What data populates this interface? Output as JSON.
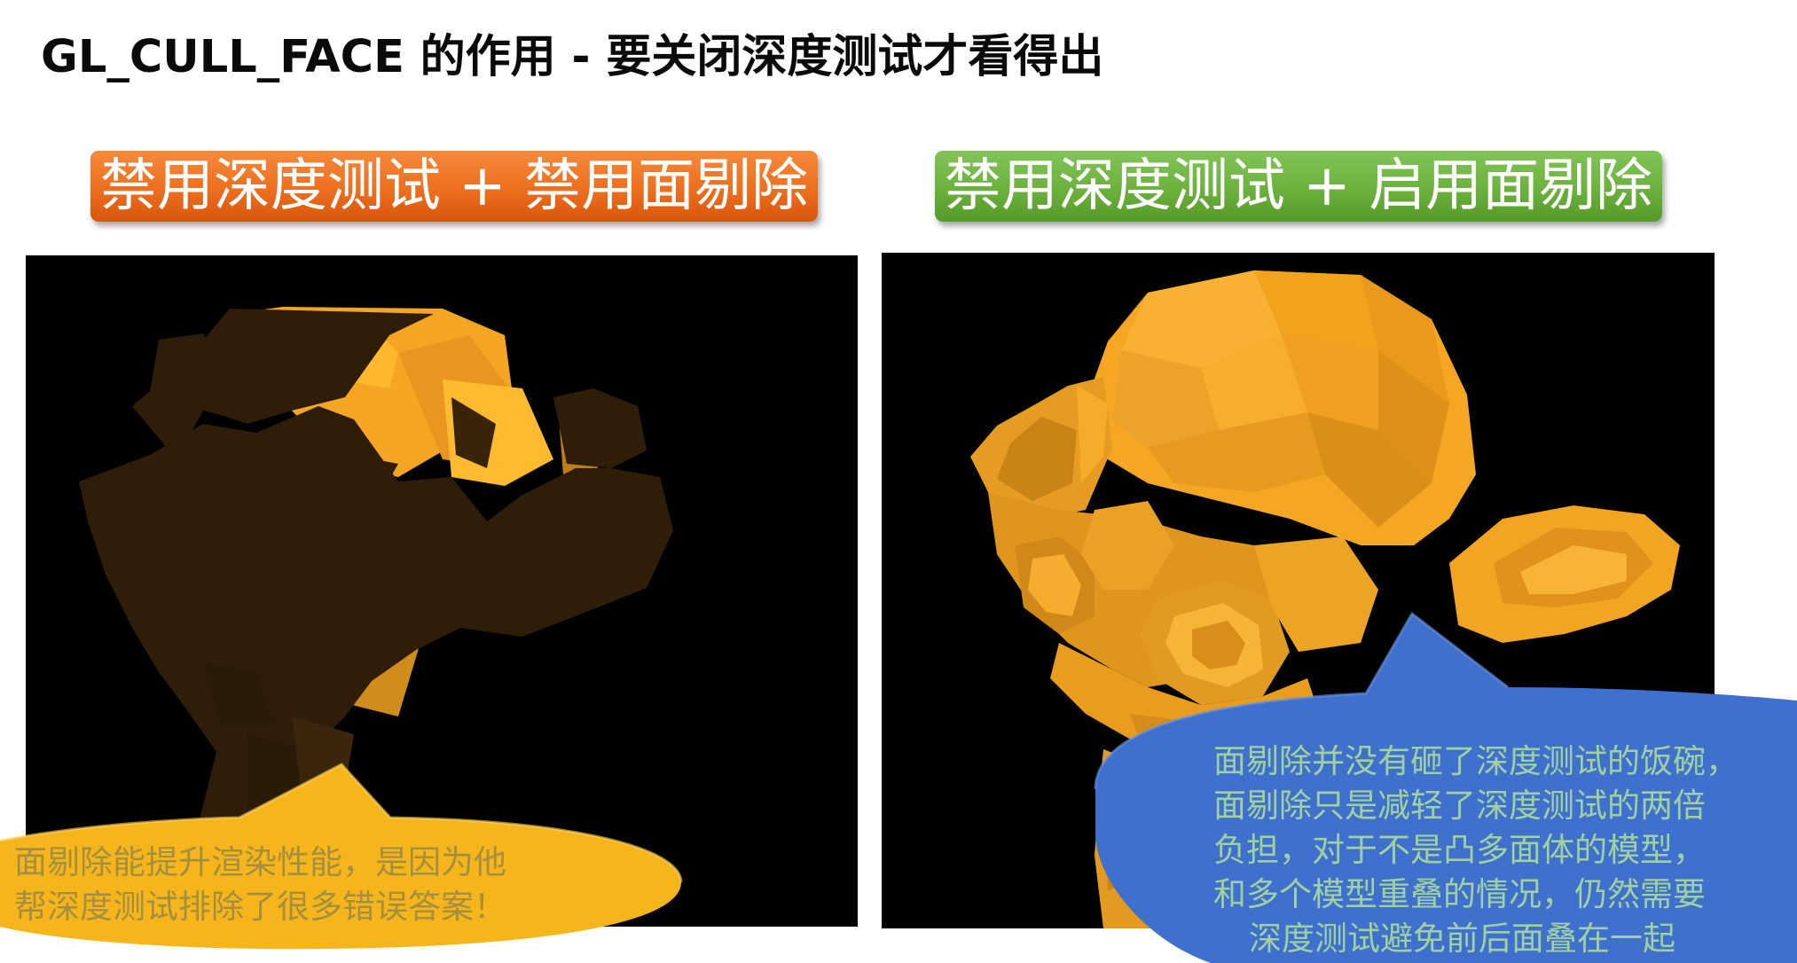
{
  "slide": {
    "title": "GL_CULL_FACE  的作用  -  要关闭深度测试才看得出"
  },
  "panels": {
    "left": {
      "banner_label": "禁用深度测试 + 禁用面剔除",
      "banner_color": "#ec6f1f"
    },
    "right": {
      "banner_label": "禁用深度测试 + 启用面剔除",
      "banner_color": "#6cb13e"
    }
  },
  "callouts": {
    "yellow": {
      "lines": [
        "面剔除能提升渲染性能，是因为他",
        "帮深度测试排除了很多错误答案！"
      ],
      "color": "#f7b61c"
    },
    "blue": {
      "lines": [
        "面剔除并没有砸了深度测试的饭碗，",
        "面剔除只是减轻了深度测试的两倍",
        "负担，对于不是凸多面体的模型，",
        "和多个模型重叠的情况，仍然需要",
        "深度测试避免前后面叠在一起"
      ],
      "color": "#3f6fcb"
    }
  }
}
